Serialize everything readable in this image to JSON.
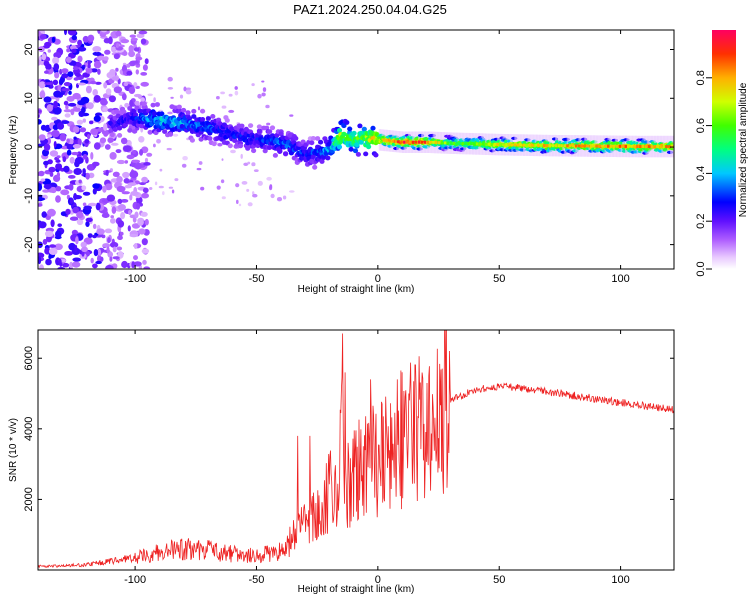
{
  "figure_title": "PAZ1.2024.250.04.04.G25",
  "chart_data": [
    {
      "type": "heatmap",
      "xlabel": "Height of straight line (km)",
      "ylabel": "Frequency (Hz)",
      "xlim": [
        -140,
        122
      ],
      "ylim": [
        -25,
        24
      ],
      "x_ticks": [
        "-100",
        "-50",
        "0",
        "50",
        "100"
      ],
      "y_ticks": [
        "20",
        "10",
        "0",
        "-10",
        "-20"
      ],
      "x_tick_values": [
        -100,
        -50,
        0,
        50,
        100
      ],
      "y_tick_values": [
        20,
        10,
        0,
        -10,
        -20
      ],
      "colorbar": {
        "label": "Normalized spectral amplitude",
        "range": [
          0,
          1
        ],
        "ticks": [
          "0.0",
          "0.2",
          "0.4",
          "0.6",
          "0.8"
        ],
        "tick_values": [
          0,
          0.2,
          0.4,
          0.6,
          0.8
        ]
      },
      "ridge": {
        "x": [
          -108,
          -100,
          -90,
          -80,
          -70,
          -60,
          -50,
          -40,
          -35,
          -30,
          -25,
          -20,
          -15,
          -10,
          -5,
          0,
          10,
          20,
          30,
          50,
          70,
          90,
          110,
          122
        ],
        "freq": [
          5,
          6,
          5.5,
          5,
          4,
          2.5,
          1.5,
          1,
          0,
          -1.5,
          -1,
          -0.5,
          2.5,
          1.5,
          1.8,
          1.5,
          1,
          1,
          0.8,
          0.5,
          0.3,
          0.2,
          0.1,
          0.1
        ],
        "amplitude": [
          0.25,
          0.3,
          0.45,
          0.4,
          0.35,
          0.3,
          0.3,
          0.35,
          0.35,
          0.3,
          0.35,
          0.4,
          0.7,
          0.6,
          0.7,
          0.8,
          0.95,
          0.9,
          0.6,
          0.75,
          0.8,
          0.85,
          0.85,
          0.85
        ]
      }
    },
    {
      "type": "line",
      "xlabel": "Height of straight line (km)",
      "ylabel": "SNR (10 * v/v)",
      "xlim": [
        -140,
        122
      ],
      "ylim": [
        0,
        6800
      ],
      "x_ticks": [
        "-100",
        "-50",
        "0",
        "50",
        "100"
      ],
      "y_ticks": [
        "6000",
        "4000",
        "2000"
      ],
      "x_tick_values": [
        -100,
        -50,
        0,
        50,
        100
      ],
      "y_tick_values": [
        6000,
        4000,
        2000
      ],
      "line_color": "#ee2222",
      "series": [
        {
          "x": [
            -140,
            -130,
            -120,
            -110,
            -100,
            -90,
            -80,
            -70,
            -60,
            -50,
            -40,
            -35,
            -30,
            -25,
            -20,
            -18,
            -16,
            -15,
            -14,
            -12,
            -10,
            -5,
            0,
            5,
            10,
            15,
            20,
            30,
            40,
            50,
            60,
            70,
            80,
            90,
            100,
            110,
            122
          ],
          "values": [
            100,
            120,
            150,
            250,
            350,
            500,
            600,
            550,
            450,
            400,
            550,
            900,
            1300,
            1500,
            2300,
            2500,
            2200,
            5000,
            2300,
            2500,
            2600,
            3000,
            3200,
            3500,
            3700,
            4000,
            4300,
            4800,
            5100,
            5200,
            5150,
            5050,
            4950,
            4850,
            4750,
            4650,
            4550
          ],
          "spikes": [
            {
              "x": -14.5,
              "value": 6700
            },
            {
              "x": -13.5,
              "value": 5600
            },
            {
              "x": -33,
              "value": 3800
            },
            {
              "x": -28,
              "value": 3800
            },
            {
              "x": -3,
              "value": 5400
            },
            {
              "x": 8,
              "value": 5400
            }
          ]
        }
      ]
    }
  ]
}
